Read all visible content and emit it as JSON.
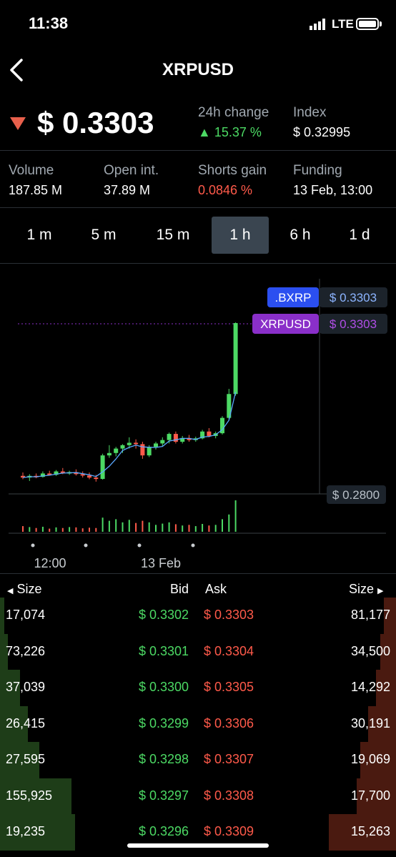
{
  "status": {
    "time": "11:38",
    "network": "LTE"
  },
  "header": {
    "title": "XRPUSD"
  },
  "price": {
    "value": "$ 0.3303",
    "direction": "down",
    "direction_color": "#e8604c"
  },
  "stats_top": [
    {
      "label": "24h change",
      "value": "▲ 15.37 %",
      "tone": "green"
    },
    {
      "label": "Index",
      "value": "$ 0.32995",
      "tone": "white"
    }
  ],
  "stats_row": [
    {
      "label": "Volume",
      "value": "187.85 M",
      "tone": "white"
    },
    {
      "label": "Open int.",
      "value": "37.89 M",
      "tone": "white"
    },
    {
      "label": "Shorts gain",
      "value": "0.0846 %",
      "tone": "red"
    },
    {
      "label": "Funding",
      "value": "13 Feb, 13:00",
      "tone": "white"
    }
  ],
  "timeframes": {
    "items": [
      "1 m",
      "5 m",
      "15 m",
      "1 h",
      "6 h",
      "1 d"
    ],
    "selected": "1 h"
  },
  "chart_data": {
    "type": "candlestick",
    "x_labels": [
      "12:00",
      "13 Feb"
    ],
    "price_tags": [
      {
        "name": ".BXRP",
        "value": "$ 0.3303",
        "color": "#2b4ff0"
      },
      {
        "name": "XRPUSD",
        "value": "$ 0.3303",
        "color": "#8a2fc9"
      }
    ],
    "low_tag": "$ 0.2800",
    "ylim": [
      0.28,
      0.34
    ],
    "candles": [
      [
        0.2855,
        0.2865,
        0.2845,
        0.285
      ],
      [
        0.285,
        0.286,
        0.284,
        0.2855
      ],
      [
        0.2855,
        0.2862,
        0.2848,
        0.2852
      ],
      [
        0.2852,
        0.2868,
        0.285,
        0.2862
      ],
      [
        0.2862,
        0.287,
        0.2856,
        0.2858
      ],
      [
        0.2858,
        0.2872,
        0.2855,
        0.2868
      ],
      [
        0.2868,
        0.2878,
        0.286,
        0.2864
      ],
      [
        0.2864,
        0.287,
        0.2858,
        0.2866
      ],
      [
        0.2866,
        0.2874,
        0.2856,
        0.286
      ],
      [
        0.286,
        0.2868,
        0.285,
        0.2856
      ],
      [
        0.2856,
        0.2865,
        0.2845,
        0.285
      ],
      [
        0.285,
        0.2858,
        0.2838,
        0.2846
      ],
      [
        0.2846,
        0.292,
        0.2844,
        0.2915
      ],
      [
        0.2915,
        0.2945,
        0.2908,
        0.2922
      ],
      [
        0.2922,
        0.294,
        0.2912,
        0.2935
      ],
      [
        0.2935,
        0.2948,
        0.2922,
        0.2945
      ],
      [
        0.2945,
        0.2968,
        0.2935,
        0.2952
      ],
      [
        0.2952,
        0.2962,
        0.2935,
        0.2948
      ],
      [
        0.2948,
        0.2955,
        0.2905,
        0.2915
      ],
      [
        0.2915,
        0.2945,
        0.291,
        0.294
      ],
      [
        0.294,
        0.2955,
        0.2932,
        0.295
      ],
      [
        0.295,
        0.2968,
        0.2942,
        0.296
      ],
      [
        0.296,
        0.2982,
        0.295,
        0.2978
      ],
      [
        0.2978,
        0.2985,
        0.295,
        0.2955
      ],
      [
        0.2955,
        0.2972,
        0.295,
        0.2966
      ],
      [
        0.2966,
        0.2975,
        0.2955,
        0.296
      ],
      [
        0.296,
        0.297,
        0.2955,
        0.2965
      ],
      [
        0.2965,
        0.299,
        0.2962,
        0.2985
      ],
      [
        0.2985,
        0.2995,
        0.2968,
        0.2972
      ],
      [
        0.2972,
        0.2985,
        0.2965,
        0.298
      ],
      [
        0.298,
        0.303,
        0.2976,
        0.3025
      ],
      [
        0.3025,
        0.311,
        0.302,
        0.3095
      ],
      [
        0.3095,
        0.3305,
        0.309,
        0.3303
      ]
    ],
    "volumes": [
      0.18,
      0.15,
      0.12,
      0.16,
      0.1,
      0.14,
      0.12,
      0.15,
      0.14,
      0.11,
      0.13,
      0.12,
      0.45,
      0.35,
      0.4,
      0.3,
      0.38,
      0.28,
      0.35,
      0.3,
      0.22,
      0.26,
      0.3,
      0.24,
      0.2,
      0.22,
      0.18,
      0.25,
      0.2,
      0.22,
      0.4,
      0.55,
      1.0
    ]
  },
  "orderbook": {
    "headers": {
      "size_left": "Size",
      "bid": "Bid",
      "ask": "Ask",
      "size_right": "Size"
    },
    "rows": [
      {
        "bid_size": "17,074",
        "bid": "$ 0.3302",
        "ask": "$ 0.3303",
        "ask_size": "81,177",
        "bid_depth": 0.01,
        "ask_depth": 0.03
      },
      {
        "bid_size": "73,226",
        "bid": "$ 0.3301",
        "ask": "$ 0.3304",
        "ask_size": "34,500",
        "bid_depth": 0.02,
        "ask_depth": 0.04
      },
      {
        "bid_size": "37,039",
        "bid": "$ 0.3300",
        "ask": "$ 0.3305",
        "ask_size": "14,292",
        "bid_depth": 0.05,
        "ask_depth": 0.05
      },
      {
        "bid_size": "26,415",
        "bid": "$ 0.3299",
        "ask": "$ 0.3306",
        "ask_size": "30,191",
        "bid_depth": 0.07,
        "ask_depth": 0.07
      },
      {
        "bid_size": "27,595",
        "bid": "$ 0.3298",
        "ask": "$ 0.3307",
        "ask_size": "19,069",
        "bid_depth": 0.1,
        "ask_depth": 0.09
      },
      {
        "bid_size": "155,925",
        "bid": "$ 0.3297",
        "ask": "$ 0.3308",
        "ask_size": "17,700",
        "bid_depth": 0.18,
        "ask_depth": 0.1
      },
      {
        "bid_size": "19,235",
        "bid": "$ 0.3296",
        "ask": "$ 0.3309",
        "ask_size": "15,263",
        "bid_depth": 0.19,
        "ask_depth": 0.17
      }
    ]
  },
  "colors": {
    "up": "#4cd964",
    "down": "#ff5a4a",
    "ma": "#5aa8ff",
    "bg": "#000000"
  }
}
